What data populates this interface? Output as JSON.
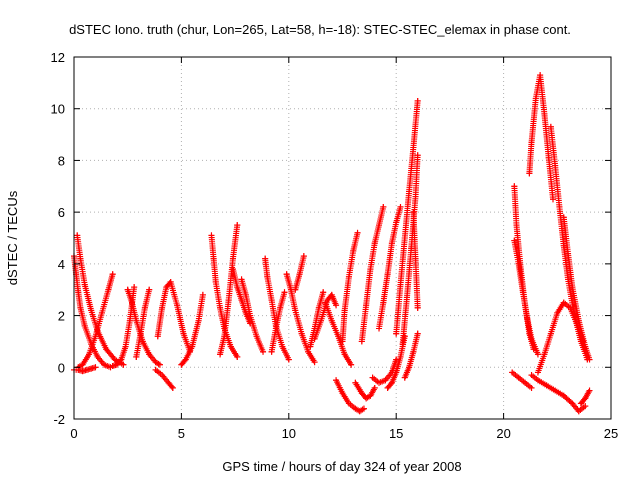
{
  "chart_data": {
    "type": "scatter",
    "title": "dSTEC Iono. truth (chur, Lon=265, Lat=58, h=-18): STEC-STEC_elemax in phase cont.",
    "xlabel": "GPS time / hours of day 324 of year 2008",
    "ylabel": "dSTEC  / TECUs",
    "xlim": [
      0,
      25
    ],
    "ylim": [
      -2,
      12
    ],
    "xticks": [
      0,
      5,
      10,
      15,
      20,
      25
    ],
    "yticks": [
      -2,
      0,
      2,
      4,
      6,
      8,
      10,
      12
    ],
    "grid": true,
    "marker": "+",
    "color": "#ff0000",
    "series": [
      {
        "x": [
          0.0,
          0.1,
          0.2,
          0.3,
          0.5,
          0.8,
          1.1,
          1.4,
          1.7
        ],
        "y": [
          4.3,
          3.6,
          2.9,
          2.3,
          1.6,
          0.9,
          0.4,
          0.1,
          0.0
        ]
      },
      {
        "x": [
          0.15,
          0.3,
          0.5,
          0.8,
          1.1,
          1.5,
          1.9,
          2.3
        ],
        "y": [
          5.1,
          4.2,
          3.2,
          2.2,
          1.4,
          0.7,
          0.3,
          0.1
        ]
      },
      {
        "x": [
          0.0,
          0.2,
          0.4,
          0.6,
          0.8,
          1.0
        ],
        "y": [
          -0.1,
          -0.1,
          -0.15,
          -0.1,
          -0.05,
          0.0
        ]
      },
      {
        "x": [
          0.2,
          0.4,
          0.7,
          1.0,
          1.3,
          1.6,
          1.8
        ],
        "y": [
          0.0,
          0.1,
          0.5,
          1.2,
          2.1,
          3.0,
          3.6
        ]
      },
      {
        "x": [
          1.8,
          2.0,
          2.2,
          2.4,
          2.6,
          2.8
        ],
        "y": [
          0.05,
          0.1,
          0.3,
          0.8,
          1.8,
          3.1
        ]
      },
      {
        "x": [
          2.5,
          2.7,
          2.9,
          3.2,
          3.5,
          3.8,
          4.0
        ],
        "y": [
          3.0,
          2.5,
          1.8,
          1.0,
          0.5,
          0.2,
          0.1
        ]
      },
      {
        "x": [
          2.9,
          3.1,
          3.3,
          3.5
        ],
        "y": [
          0.4,
          1.3,
          2.3,
          3.0
        ]
      },
      {
        "x": [
          3.8,
          4.1,
          4.4,
          4.6
        ],
        "y": [
          -0.1,
          -0.3,
          -0.6,
          -0.8
        ]
      },
      {
        "x": [
          3.9,
          4.1,
          4.3,
          4.5,
          4.8,
          5.1,
          5.4
        ],
        "y": [
          1.2,
          2.3,
          3.1,
          3.3,
          2.4,
          1.3,
          0.6
        ]
      },
      {
        "x": [
          5.0,
          5.2,
          5.5,
          5.8,
          6.0
        ],
        "y": [
          0.1,
          0.3,
          0.8,
          1.8,
          2.8
        ]
      },
      {
        "x": [
          6.4,
          6.5,
          6.6,
          6.8,
          7.0,
          7.3,
          7.6
        ],
        "y": [
          5.1,
          4.2,
          3.3,
          2.3,
          1.5,
          0.8,
          0.4
        ]
      },
      {
        "x": [
          6.8,
          7.0,
          7.2,
          7.4,
          7.6
        ],
        "y": [
          0.5,
          1.2,
          2.6,
          4.2,
          5.5
        ]
      },
      {
        "x": [
          7.4,
          7.6,
          7.8,
          8.0,
          8.2
        ],
        "y": [
          3.8,
          3.1,
          2.6,
          2.1,
          1.7
        ]
      },
      {
        "x": [
          7.8,
          8.0,
          8.2,
          8.5,
          8.8
        ],
        "y": [
          3.4,
          2.8,
          2.0,
          1.2,
          0.6
        ]
      },
      {
        "x": [
          8.9,
          9.0,
          9.2,
          9.4,
          9.7,
          10.0
        ],
        "y": [
          4.2,
          3.5,
          2.6,
          1.6,
          0.8,
          0.3
        ]
      },
      {
        "x": [
          9.2,
          9.4,
          9.6,
          9.8
        ],
        "y": [
          0.6,
          1.5,
          2.3,
          2.9
        ]
      },
      {
        "x": [
          9.9,
          10.1,
          10.3,
          10.6,
          10.9,
          11.2
        ],
        "y": [
          3.6,
          3.0,
          2.2,
          1.3,
          0.6,
          0.2
        ]
      },
      {
        "x": [
          10.3,
          10.5,
          10.7
        ],
        "y": [
          3.0,
          3.6,
          4.3
        ]
      },
      {
        "x": [
          11.0,
          11.2,
          11.4,
          11.6
        ],
        "y": [
          0.8,
          1.5,
          2.3,
          2.9
        ]
      },
      {
        "x": [
          11.2,
          11.5,
          11.8,
          12.0,
          12.2
        ],
        "y": [
          1.1,
          1.8,
          2.6,
          2.8,
          2.4
        ]
      },
      {
        "x": [
          11.7,
          12.0,
          12.3,
          12.6,
          12.9
        ],
        "y": [
          2.5,
          1.8,
          1.2,
          0.5,
          0.1
        ]
      },
      {
        "x": [
          12.2,
          12.5,
          12.8,
          13.1,
          13.3,
          13.5
        ],
        "y": [
          -0.5,
          -1.0,
          -1.4,
          -1.6,
          -1.7,
          -1.6
        ]
      },
      {
        "x": [
          12.5,
          12.6,
          12.8,
          13.0,
          13.2
        ],
        "y": [
          1.0,
          2.2,
          3.5,
          4.5,
          5.2
        ]
      },
      {
        "x": [
          13.1,
          13.4,
          13.6,
          13.8,
          14.0
        ],
        "y": [
          -0.6,
          -1.0,
          -1.2,
          -1.1,
          -0.8
        ]
      },
      {
        "x": [
          13.4,
          13.6,
          13.8,
          14.0,
          14.2,
          14.4
        ],
        "y": [
          1.0,
          2.4,
          3.8,
          4.8,
          5.5,
          6.2
        ]
      },
      {
        "x": [
          13.9,
          14.2,
          14.5,
          14.8,
          15.0
        ],
        "y": [
          -0.4,
          -0.6,
          -0.5,
          -0.2,
          0.3
        ]
      },
      {
        "x": [
          14.2,
          14.4,
          14.6,
          14.8,
          15.0,
          15.2
        ],
        "y": [
          1.5,
          2.5,
          3.6,
          4.8,
          5.6,
          6.2
        ]
      },
      {
        "x": [
          14.6,
          14.8,
          15.0,
          15.2,
          15.4
        ],
        "y": [
          -0.8,
          -0.6,
          -0.2,
          0.4,
          1.2
        ]
      },
      {
        "x": [
          15.0,
          15.2,
          15.4,
          15.6,
          15.8,
          16.0
        ],
        "y": [
          1.3,
          3.2,
          5.0,
          6.8,
          8.5,
          10.3
        ]
      },
      {
        "x": [
          15.3,
          15.5,
          15.7,
          15.9,
          16.0
        ],
        "y": [
          0.9,
          2.7,
          4.6,
          6.6,
          8.2
        ]
      },
      {
        "x": [
          15.4,
          15.6,
          15.8,
          16.0
        ],
        "y": [
          -0.4,
          0.0,
          0.6,
          1.3
        ]
      },
      {
        "x": [
          15.8,
          15.9,
          16.0
        ],
        "y": [
          6.0,
          4.2,
          2.3
        ]
      },
      {
        "x": [
          20.5,
          20.6,
          20.8,
          21.0,
          21.2,
          21.4
        ],
        "y": [
          7.0,
          5.5,
          3.8,
          2.4,
          1.3,
          0.7
        ]
      },
      {
        "x": [
          20.5,
          20.7,
          20.9,
          21.1,
          21.3,
          21.6
        ],
        "y": [
          4.9,
          4.0,
          2.9,
          1.9,
          1.1,
          0.5
        ]
      },
      {
        "x": [
          20.4,
          20.7,
          21.0,
          21.3
        ],
        "y": [
          -0.2,
          -0.4,
          -0.6,
          -0.8
        ]
      },
      {
        "x": [
          21.2,
          21.3,
          21.5,
          21.7,
          21.9,
          22.1,
          22.3
        ],
        "y": [
          7.5,
          8.7,
          10.4,
          11.3,
          9.8,
          8.1,
          6.5
        ]
      },
      {
        "x": [
          21.3,
          21.6,
          22.0,
          22.4,
          22.8,
          23.2,
          23.5,
          23.8
        ],
        "y": [
          -0.3,
          -0.5,
          -0.7,
          -0.9,
          -1.1,
          -1.4,
          -1.7,
          -1.5
        ]
      },
      {
        "x": [
          21.6,
          21.9,
          22.2,
          22.5,
          22.8,
          23.1,
          23.4,
          23.7
        ],
        "y": [
          -0.2,
          0.5,
          1.3,
          2.1,
          2.5,
          2.3,
          1.7,
          1.0
        ]
      },
      {
        "x": [
          22.2,
          22.4,
          22.6,
          22.8,
          23.0,
          23.3,
          23.6,
          23.9
        ],
        "y": [
          9.3,
          7.8,
          6.2,
          4.7,
          3.4,
          2.0,
          1.0,
          0.3
        ]
      },
      {
        "x": [
          22.8,
          23.0,
          23.2,
          23.5,
          23.8,
          24.0
        ],
        "y": [
          5.8,
          4.4,
          3.1,
          1.8,
          0.8,
          0.3
        ]
      },
      {
        "x": [
          23.6,
          23.8,
          24.0
        ],
        "y": [
          -1.4,
          -1.2,
          -0.9
        ]
      }
    ]
  }
}
